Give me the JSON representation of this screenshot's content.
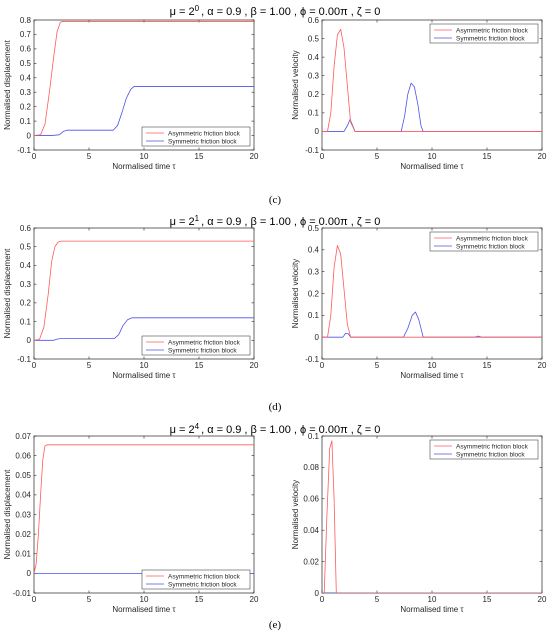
{
  "captions": [
    "(c)",
    "(d)",
    "(e)"
  ],
  "title_parts": [
    {
      "mu_sup": "0",
      "tail": ", α = 0.9 , β = 1.00 , ϕ = 0.00π , ζ = 0"
    },
    {
      "mu_sup": "1",
      "tail": ", α = 0.9 , β = 1.00 , ϕ = 0.00π , ζ = 0"
    },
    {
      "mu_sup": "4",
      "tail": ", α = 0.9 , β = 1.00 , ϕ = 0.00π , ζ = 0"
    }
  ],
  "title_head": "μ = 2",
  "colors": {
    "asymmetric": "#ff5a5a",
    "symmetric": "#5050e6"
  },
  "chart_data": [
    {
      "type": "line",
      "title": "μ = 2^0 , α = 0.9 , β = 1.00 , ϕ = 0.00π , ζ = 0",
      "xlabel": "Normalised time τ",
      "ylabel": "Normalised displacement",
      "xlim": [
        0,
        20
      ],
      "ylim": [
        -0.1,
        0.8
      ],
      "xticks": [
        "0",
        "5",
        "10",
        "15",
        "20"
      ],
      "yticks": [
        "-0.1",
        "0",
        "0.1",
        "0.2",
        "0.3",
        "0.4",
        "0.5",
        "0.6",
        "0.7",
        "0.8"
      ],
      "legend": "bottom-right",
      "series": [
        {
          "name": "Asymmetric friction block",
          "x": [
            0,
            0.6,
            1.0,
            1.4,
            1.8,
            2.1,
            2.4,
            2.6,
            20
          ],
          "y": [
            0,
            0.005,
            0.08,
            0.3,
            0.55,
            0.72,
            0.785,
            0.79,
            0.79
          ]
        },
        {
          "name": "Symmetric friction block",
          "x": [
            0,
            1.5,
            2.3,
            2.7,
            3.0,
            7.2,
            7.6,
            8.0,
            8.4,
            8.8,
            9.1,
            20
          ],
          "y": [
            0,
            0,
            0.005,
            0.03,
            0.037,
            0.037,
            0.07,
            0.16,
            0.26,
            0.32,
            0.34,
            0.34
          ]
        }
      ]
    },
    {
      "type": "line",
      "title": "",
      "xlabel": "Normalised time τ",
      "ylabel": "Normalised velocity",
      "xlim": [
        0,
        20
      ],
      "ylim": [
        -0.1,
        0.6
      ],
      "xticks": [
        "0",
        "5",
        "10",
        "15",
        "20"
      ],
      "yticks": [
        "-0.1",
        "0",
        "0.1",
        "0.2",
        "0.3",
        "0.4",
        "0.5",
        "0.6"
      ],
      "legend": "top-right",
      "series": [
        {
          "name": "Asymmetric friction block",
          "x": [
            0,
            0.5,
            0.8,
            1.1,
            1.4,
            1.7,
            2.0,
            2.3,
            2.6,
            3.0,
            20
          ],
          "y": [
            0,
            0,
            0.1,
            0.35,
            0.52,
            0.55,
            0.45,
            0.25,
            0.05,
            0,
            0
          ]
        },
        {
          "name": "Symmetric friction block",
          "x": [
            0,
            2.0,
            2.3,
            2.55,
            2.8,
            3.0,
            7.2,
            7.5,
            7.8,
            8.1,
            8.4,
            8.7,
            9.0,
            9.2,
            20
          ],
          "y": [
            0,
            0,
            0.03,
            0.065,
            0.03,
            0,
            0,
            0.08,
            0.2,
            0.26,
            0.24,
            0.15,
            0.03,
            0,
            0
          ]
        }
      ]
    },
    {
      "type": "line",
      "title": "μ = 2^1 , α = 0.9 , β = 1.00 , ϕ = 0.00π , ζ = 0",
      "xlabel": "Normalised time τ",
      "ylabel": "Normalised displacement",
      "xlim": [
        0,
        20
      ],
      "ylim": [
        -0.1,
        0.6
      ],
      "xticks": [
        "0",
        "5",
        "10",
        "15",
        "20"
      ],
      "yticks": [
        "-0.1",
        "0",
        "0.1",
        "0.2",
        "0.3",
        "0.4",
        "0.5",
        "0.6"
      ],
      "legend": "bottom-right",
      "series": [
        {
          "name": "Asymmetric friction block",
          "x": [
            0,
            0.5,
            0.9,
            1.3,
            1.6,
            1.9,
            2.2,
            2.5,
            20
          ],
          "y": [
            0,
            0.005,
            0.07,
            0.25,
            0.42,
            0.5,
            0.525,
            0.53,
            0.53
          ]
        },
        {
          "name": "Symmetric friction block",
          "x": [
            0,
            1.8,
            2.1,
            2.4,
            7.3,
            7.7,
            8.1,
            8.5,
            8.9,
            20
          ],
          "y": [
            0,
            0,
            0.006,
            0.009,
            0.009,
            0.03,
            0.08,
            0.11,
            0.12,
            0.12
          ]
        }
      ]
    },
    {
      "type": "line",
      "title": "",
      "xlabel": "Normalised time τ",
      "ylabel": "Normalised velocity",
      "xlim": [
        0,
        20
      ],
      "ylim": [
        -0.1,
        0.5
      ],
      "xticks": [
        "0",
        "5",
        "10",
        "15",
        "20"
      ],
      "yticks": [
        "-0.1",
        "0",
        "0.1",
        "0.2",
        "0.3",
        "0.4",
        "0.5"
      ],
      "legend": "top-right",
      "series": [
        {
          "name": "Asymmetric friction block",
          "x": [
            0,
            0.5,
            0.8,
            1.1,
            1.4,
            1.7,
            2.0,
            2.3,
            2.6,
            20
          ],
          "y": [
            0,
            0,
            0.1,
            0.32,
            0.42,
            0.38,
            0.22,
            0.06,
            0,
            0
          ]
        },
        {
          "name": "Symmetric friction block",
          "x": [
            0,
            1.9,
            2.15,
            2.4,
            2.6,
            7.4,
            7.8,
            8.2,
            8.5,
            8.8,
            9.2,
            13.9,
            14.2,
            14.5,
            20
          ],
          "y": [
            0,
            0,
            0.018,
            0.015,
            0,
            0,
            0.04,
            0.1,
            0.115,
            0.08,
            0,
            0,
            0.005,
            0,
            0
          ]
        }
      ]
    },
    {
      "type": "line",
      "title": "μ = 2^4 , α = 0.9 , β = 1.00 , ϕ = 0.00π , ζ = 0",
      "xlabel": "Normalised time τ",
      "ylabel": "Normalised displacement",
      "xlim": [
        0,
        20
      ],
      "ylim": [
        -0.01,
        0.07
      ],
      "xticks": [
        "0",
        "5",
        "10",
        "15",
        "20"
      ],
      "yticks": [
        "-0.01",
        "0",
        "0.01",
        "0.02",
        "0.03",
        "0.04",
        "0.05",
        "0.06",
        "0.07"
      ],
      "legend": "bottom-right",
      "series": [
        {
          "name": "Asymmetric friction block",
          "x": [
            0,
            0.2,
            0.4,
            0.6,
            0.8,
            1.0,
            1.2,
            20
          ],
          "y": [
            0,
            0.005,
            0.02,
            0.04,
            0.058,
            0.065,
            0.0655,
            0.0655
          ]
        },
        {
          "name": "Symmetric friction block",
          "x": [
            0,
            20
          ],
          "y": [
            0,
            0
          ]
        }
      ]
    },
    {
      "type": "line",
      "title": "",
      "xlabel": "Normalised time τ",
      "ylabel": "Normalised velocity",
      "xlim": [
        0,
        20
      ],
      "ylim": [
        0,
        0.1
      ],
      "xticks": [
        "0",
        "5",
        "10",
        "15",
        "20"
      ],
      "yticks": [
        "0",
        "0.02",
        "0.04",
        "0.06",
        "0.08",
        "0.1"
      ],
      "legend": "top-right",
      "series": [
        {
          "name": "Asymmetric friction block",
          "x": [
            0,
            0.2,
            0.45,
            0.7,
            0.9,
            1.1,
            1.3,
            20
          ],
          "y": [
            0,
            0,
            0.05,
            0.092,
            0.097,
            0.06,
            0,
            0
          ]
        },
        {
          "name": "Symmetric friction block",
          "x": [
            0,
            20
          ],
          "y": [
            0,
            0
          ]
        }
      ]
    }
  ]
}
